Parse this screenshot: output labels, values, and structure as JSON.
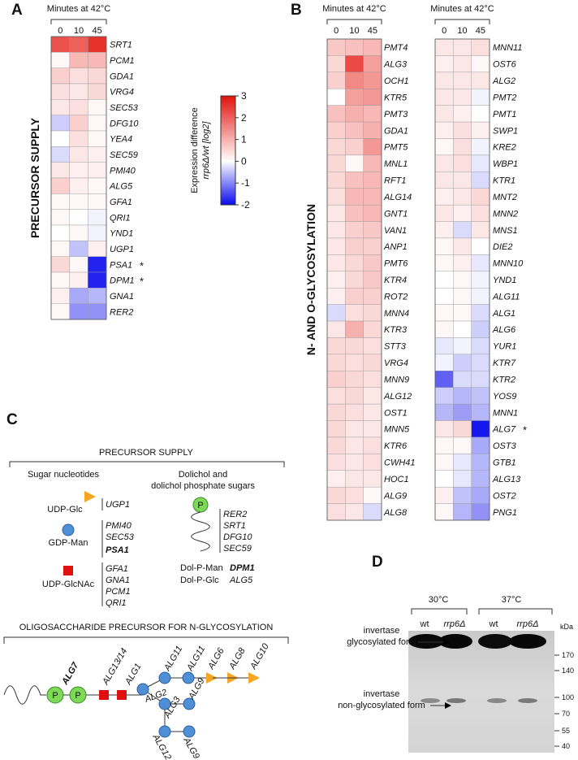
{
  "chart_data": [
    {
      "type": "heatmap",
      "panel": "A",
      "title": "Minutes at 42°C",
      "columns": [
        "0",
        "10",
        "45"
      ],
      "group_label": "PRECURSOR SUPPLY",
      "rows": [
        "SRT1",
        "PCM1",
        "GDA1",
        "VRG4",
        "SEC53",
        "DFG10",
        "YEA4",
        "SEC59",
        "PMI40",
        "ALG5",
        "GFA1",
        "QRI1",
        "YND1",
        "UGP1",
        "PSA1",
        "DPM1",
        "GNA1",
        "RER2"
      ],
      "row_notes": [
        null,
        null,
        null,
        null,
        null,
        null,
        null,
        null,
        null,
        null,
        null,
        null,
        null,
        null,
        "*",
        "*",
        null,
        null
      ],
      "values": [
        [
          2.2,
          2.0,
          2.6
        ],
        [
          0.1,
          0.9,
          0.9
        ],
        [
          0.6,
          0.4,
          0.5
        ],
        [
          0.4,
          0.3,
          0.5
        ],
        [
          0.3,
          0.4,
          0.1
        ],
        [
          -0.4,
          0.6,
          0.1
        ],
        [
          0.0,
          0.4,
          0.1
        ],
        [
          -0.3,
          0.3,
          0.2
        ],
        [
          0.3,
          0.2,
          0.2
        ],
        [
          0.6,
          0.2,
          0.1
        ],
        [
          0.1,
          0.1,
          0.1
        ],
        [
          0.1,
          0.0,
          -0.1
        ],
        [
          0.0,
          0.1,
          -0.1
        ],
        [
          0.1,
          -0.5,
          0.2
        ],
        [
          0.5,
          0.1,
          -1.8
        ],
        [
          0.1,
          0.2,
          -1.8
        ],
        [
          0.2,
          -0.7,
          -0.6
        ],
        [
          0.1,
          -0.9,
          -0.9
        ]
      ]
    },
    {
      "type": "heatmap",
      "panel": "B",
      "title": "Minutes at 42°C",
      "columns": [
        "0",
        "10",
        "45"
      ],
      "group_label": "N- AND O-GLYCOSYLATION",
      "rows": [
        "PMT4",
        "ALG3",
        "OCH1",
        "KTR5",
        "PMT3",
        "GDA1",
        "PMT5",
        "MNL1",
        "RFT1",
        "ALG14",
        "GNT1",
        "VAN1",
        "ANP1",
        "PMT6",
        "KTR4",
        "ROT2",
        "MNN4",
        "KTR3",
        "STT3",
        "VRG4",
        "MNN9",
        "ALG12",
        "OST1",
        "MNN5",
        "KTR6",
        "CWH41",
        "HOC1",
        "ALG9",
        "ALG8"
      ],
      "values": [
        [
          0.7,
          0.8,
          0.9
        ],
        [
          0.5,
          2.3,
          1.2
        ],
        [
          0.6,
          1.5,
          1.3
        ],
        [
          0.0,
          1.2,
          1.3
        ],
        [
          0.8,
          1.0,
          0.9
        ],
        [
          0.6,
          0.8,
          1.0
        ],
        [
          0.5,
          0.6,
          1.3
        ],
        [
          0.5,
          0.1,
          0.9
        ],
        [
          0.5,
          0.8,
          0.9
        ],
        [
          0.4,
          0.9,
          0.9
        ],
        [
          0.3,
          0.8,
          0.9
        ],
        [
          0.3,
          0.6,
          0.7
        ],
        [
          0.3,
          0.6,
          0.6
        ],
        [
          0.3,
          0.5,
          0.7
        ],
        [
          0.2,
          0.5,
          0.7
        ],
        [
          0.2,
          0.6,
          0.6
        ],
        [
          -0.3,
          0.4,
          0.5
        ],
        [
          0.3,
          1.0,
          0.5
        ],
        [
          0.5,
          0.5,
          0.4
        ],
        [
          0.5,
          0.4,
          0.5
        ],
        [
          0.6,
          0.5,
          0.4
        ],
        [
          0.4,
          0.5,
          0.3
        ],
        [
          0.5,
          0.4,
          0.3
        ],
        [
          0.5,
          0.3,
          0.3
        ],
        [
          0.5,
          0.3,
          0.4
        ],
        [
          0.4,
          0.3,
          0.4
        ],
        [
          0.2,
          0.3,
          0.3
        ],
        [
          0.5,
          0.4,
          0.1
        ],
        [
          0.4,
          0.3,
          -0.3
        ]
      ]
    },
    {
      "type": "heatmap",
      "title": "Minutes at 42°C",
      "columns": [
        "0",
        "10",
        "45"
      ],
      "rows": [
        "MNN11",
        "OST6",
        "ALG2",
        "PMT2",
        "PMT1",
        "SWP1",
        "KRE2",
        "WBP1",
        "KTR1",
        "MNT2",
        "MNN2",
        "MNS1",
        "DIE2",
        "MNN10",
        "YND1",
        "ALG11",
        "ALG1",
        "ALG6",
        "YUR1",
        "KTR7",
        "KTR2",
        "YOS9",
        "MNN1",
        "ALG7",
        "OST3",
        "GTB1",
        "ALG13",
        "OST2",
        "PNG1"
      ],
      "row_notes": [
        null,
        null,
        null,
        null,
        null,
        null,
        null,
        null,
        null,
        null,
        null,
        null,
        null,
        null,
        null,
        null,
        null,
        null,
        null,
        null,
        null,
        null,
        null,
        "*",
        null,
        null,
        null,
        null,
        null
      ],
      "values": [
        [
          0.3,
          0.3,
          0.4
        ],
        [
          0.2,
          0.3,
          0.1
        ],
        [
          0.3,
          0.3,
          0.3
        ],
        [
          0.3,
          0.3,
          -0.1
        ],
        [
          0.3,
          0.2,
          0.0
        ],
        [
          0.2,
          0.4,
          0.2
        ],
        [
          0.1,
          0.4,
          -0.1
        ],
        [
          0.3,
          0.4,
          -0.2
        ],
        [
          0.3,
          0.3,
          -0.3
        ],
        [
          0.2,
          0.3,
          0.5
        ],
        [
          0.3,
          0.2,
          0.4
        ],
        [
          0.2,
          -0.3,
          0.3
        ],
        [
          0.1,
          0.3,
          0.0
        ],
        [
          0.1,
          0.2,
          -0.2
        ],
        [
          0.0,
          0.1,
          -0.1
        ],
        [
          0.0,
          0.1,
          -0.1
        ],
        [
          0.1,
          0.1,
          -0.3
        ],
        [
          0.1,
          0.0,
          -0.4
        ],
        [
          -0.2,
          -0.1,
          -0.3
        ],
        [
          -0.1,
          -0.4,
          -0.3
        ],
        [
          -1.3,
          -0.3,
          -0.3
        ],
        [
          -0.4,
          -0.6,
          -0.5
        ],
        [
          -0.6,
          -0.8,
          -0.6
        ],
        [
          0.3,
          0.5,
          -1.9
        ],
        [
          0.1,
          0.1,
          -0.7
        ],
        [
          0.1,
          -0.2,
          -0.6
        ],
        [
          0.0,
          -0.2,
          -0.6
        ],
        [
          0.2,
          -0.5,
          -0.7
        ],
        [
          0.1,
          -0.6,
          -0.9
        ]
      ]
    }
  ],
  "colorbar": {
    "label": "Expression difference",
    "sublabel": "rrp6Δ/wt  [log2]",
    "zlim": [
      -2,
      3
    ],
    "zticks": [
      3,
      2,
      1,
      0,
      -1,
      -2
    ],
    "low_color": "#0a0aee",
    "mid_color": "#ffffff",
    "high_color": "#e3120b"
  },
  "panel_c": {
    "label": "C",
    "title": "PRECURSOR SUPPLY",
    "sugar_title": "Sugar nucleotides",
    "sugars": [
      {
        "name": "UDP-Glc",
        "genes": [
          "UGP1"
        ]
      },
      {
        "name": "GDP-Man",
        "genes": [
          "PMI40",
          "SEC53",
          "PSA1"
        ]
      },
      {
        "name": "UDP-GlcNAc",
        "genes": [
          "GFA1",
          "GNA1",
          "PCM1",
          "QRI1"
        ]
      }
    ],
    "dolichol_title": [
      "Dolichol and",
      "dolichol phosphate sugars"
    ],
    "phosphate": "P",
    "dolichol_genes": [
      "RER2",
      "SRT1",
      "DFG10",
      "SEC59"
    ],
    "dolichol_sugars": [
      [
        "Dol-P-Man",
        "DPM1"
      ],
      [
        "Dol-P-Glc",
        "ALG5"
      ]
    ],
    "oligo_title": "OLIGOSACCHARIDE PRECURSOR FOR N-GLYCOSYLATION",
    "oligo_enzymes": [
      "ALG7",
      "ALG13/14",
      "ALG1",
      "ALG2",
      "ALG11",
      "ALG11",
      "ALG6",
      "ALG8",
      "ALG10",
      "ALG3",
      "ALG9",
      "ALG12",
      "ALG9"
    ]
  },
  "panel_d": {
    "label": "D",
    "temps": [
      "30°C",
      "37°C"
    ],
    "lanes": [
      "wt",
      "rrp6Δ",
      "wt",
      "rrp6Δ"
    ],
    "unit": "kDa",
    "markers": [
      "170",
      "140",
      "100",
      "70",
      "55",
      "40"
    ],
    "band_labels": [
      [
        "invertase",
        "glycosylated form"
      ],
      [
        "invertase",
        "non-glycosylated form"
      ]
    ]
  }
}
